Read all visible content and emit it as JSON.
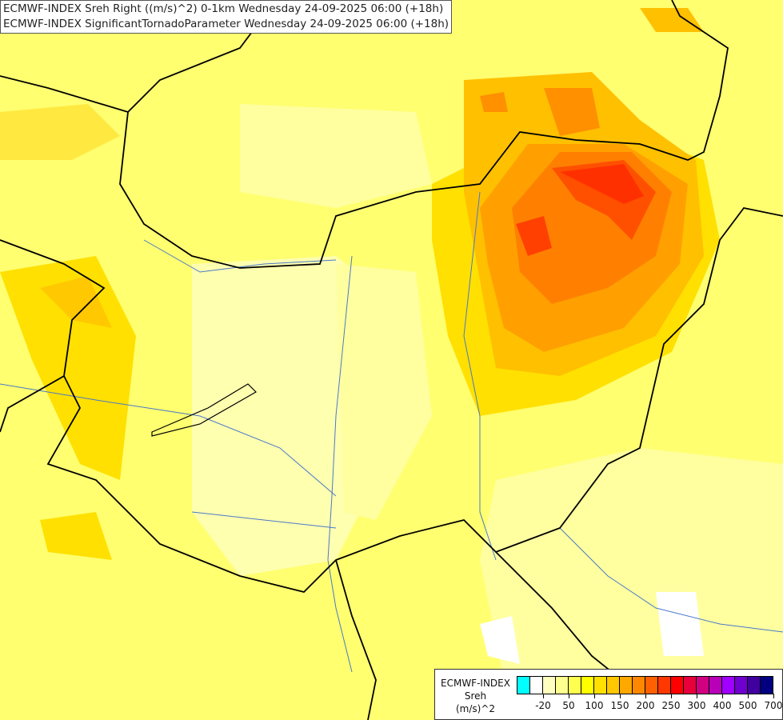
{
  "titles": [
    "ECMWF-INDEX Sreh Right ((m/s)^2) 0-1km Wednesday 24-09-2025 06:00 (+18h)",
    "ECMWF-INDEX SignificantTornadoParameter Wednesday 24-09-2025 06:00 (+18h)"
  ],
  "legend": {
    "title_lines": [
      "ECMWF-INDEX",
      "Sreh",
      "(m/s)^2"
    ],
    "colors": [
      "#00ffff",
      "#ffffff",
      "#ffffc0",
      "#ffff90",
      "#ffff50",
      "#ffff00",
      "#ffe000",
      "#ffc800",
      "#ffa800",
      "#ff8800",
      "#ff6000",
      "#ff3800",
      "#ff0000",
      "#e8003c",
      "#d00080",
      "#b800b8",
      "#a000ff",
      "#7000d0",
      "#4000a0",
      "#000080"
    ],
    "tick_labels": [
      "-20",
      "50",
      "100",
      "150",
      "200",
      "250",
      "300",
      "400",
      "500",
      "700"
    ]
  },
  "colors": {
    "border": "#000000",
    "river": "#4a78c8",
    "background": "#ffff70"
  }
}
